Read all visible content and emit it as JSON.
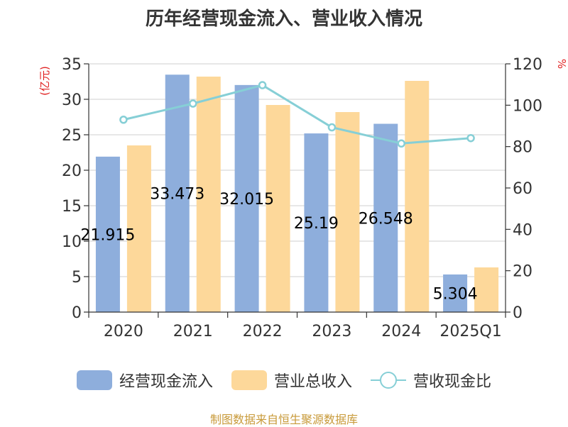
{
  "chart_data": {
    "type": "bar",
    "title": "历年经营现金流入、营业收入情况",
    "categories": [
      "2020",
      "2021",
      "2022",
      "2023",
      "2024",
      "2025Q1"
    ],
    "y_left_unit": "(亿元)",
    "y_right_unit": "%",
    "ylim_left": [
      0,
      35
    ],
    "ylim_right": [
      0,
      120
    ],
    "yticks_left": [
      0,
      5,
      10,
      15,
      20,
      25,
      30,
      35
    ],
    "yticks_right": [
      0,
      20,
      40,
      60,
      80,
      100,
      120
    ],
    "grid": true,
    "legend_position": "bottom",
    "series": [
      {
        "name": "经营现金流入",
        "type": "bar",
        "axis": "left",
        "color": "#8eaedc",
        "values": [
          21.915,
          33.473,
          32.015,
          25.19,
          26.548,
          5.304
        ],
        "labels": [
          "21.915",
          "33.473",
          "32.015",
          "25.19",
          "26.548",
          "5.304"
        ]
      },
      {
        "name": "营业总收入",
        "type": "bar",
        "axis": "left",
        "color": "#fdd89a",
        "values": [
          23.5,
          33.2,
          29.2,
          28.2,
          32.6,
          6.3
        ]
      },
      {
        "name": "营收现金比",
        "type": "line",
        "axis": "right",
        "color": "#86cfd6",
        "values": [
          93.0,
          100.8,
          109.7,
          89.3,
          81.5,
          84.1
        ]
      }
    ]
  },
  "source_text": "制图数据来自恒生聚源数据库"
}
